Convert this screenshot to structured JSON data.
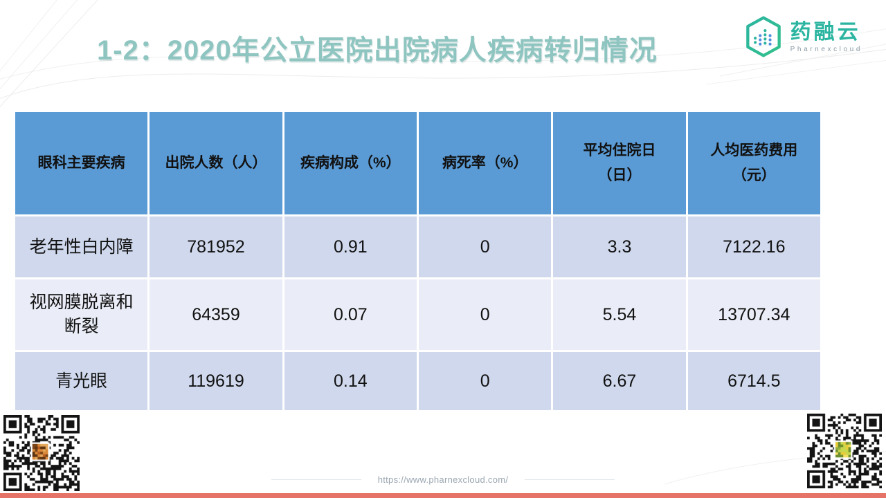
{
  "title": "1-2：2020年公立医院出院病人疾病转归情况",
  "logo": {
    "name": "药融云",
    "subtitle": "Pharnexcloud",
    "icon": "hexagon-bar-chart-logo-icon",
    "teal": "#2BB5A0",
    "green": "#33C08C"
  },
  "table": {
    "headers": [
      "眼科主要疾病",
      "出院人数（人）",
      "疾病构成（%）",
      "病死率（%）",
      "平均住院日\n（日）",
      "人均医药费用\n（元）"
    ],
    "rows": [
      [
        "老年性白内障",
        "781952",
        "0.91",
        "0",
        "3.3",
        "7122.16"
      ],
      [
        "视网膜脱离和断裂",
        "64359",
        "0.07",
        "0",
        "5.54",
        "13707.34"
      ],
      [
        "青光眼",
        "119619",
        "0.14",
        "0",
        "6.67",
        "6714.5"
      ]
    ],
    "colors": {
      "header_bg": "#5B9BD5",
      "row_odd_bg": "#CFD8EC",
      "row_even_bg": "#EAEDF7",
      "text": "#111111"
    }
  },
  "footer": {
    "url": "https://www.pharnexcloud.com/"
  },
  "colors": {
    "title": "#8FC5C0",
    "bottom_bar": "#E57368"
  }
}
